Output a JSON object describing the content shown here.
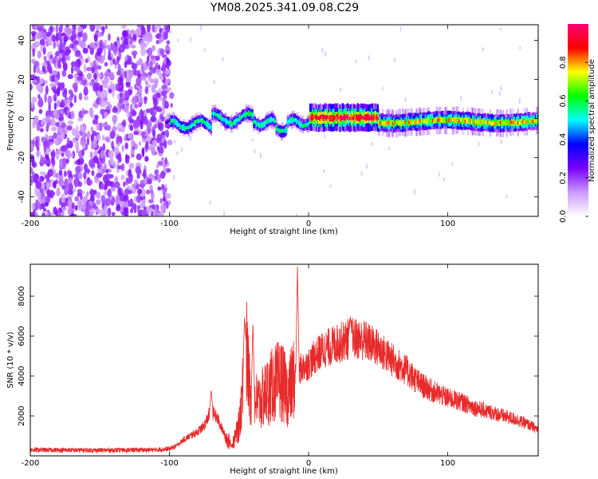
{
  "title": "YM08.2025.341.09.08.C29",
  "chart_data": [
    {
      "type": "heatmap",
      "name": "spectrogram",
      "xlabel": "Height of straight line (km)",
      "ylabel": "Frequency (Hz)",
      "xlim": [
        -200,
        165
      ],
      "ylim": [
        -50,
        48
      ],
      "xticks": [
        -200,
        -100,
        0,
        100
      ],
      "yticks": [
        -40,
        -20,
        0,
        20,
        40
      ],
      "colorbar": {
        "label": "Normalized spectral amplitude",
        "range": [
          0,
          1
        ],
        "ticks": [
          0.0,
          0.2,
          0.4,
          0.6,
          0.8
        ],
        "colors": [
          "#ffffff",
          "#cc99ff",
          "#7a00ff",
          "#0000ff",
          "#00ffff",
          "#00ff00",
          "#ffff00",
          "#ff0000",
          "#ff0077"
        ]
      },
      "regions": [
        {
          "x_range": [
            -200,
            -100
          ],
          "description": "broadband noise",
          "amplitude": 0.15
        },
        {
          "x_range": [
            -100,
            0
          ],
          "center_freq_hz": 0,
          "amplitude": 0.55
        },
        {
          "x_range": [
            0,
            50
          ],
          "center_freq_hz": 0,
          "amplitude": 0.95
        },
        {
          "x_range": [
            50,
            165
          ],
          "center_freq_hz": -2,
          "amplitude": 0.75
        }
      ]
    },
    {
      "type": "line",
      "name": "snr",
      "xlabel": "Height of straight line (km)",
      "ylabel": "SNR (10 * v/v)",
      "xlim": [
        -200,
        165
      ],
      "ylim": [
        0,
        9600
      ],
      "xticks": [
        -200,
        -100,
        0,
        100
      ],
      "yticks": [
        2000,
        4000,
        6000,
        8000
      ],
      "color": "#e82a2a",
      "anchors": [
        [
          -200,
          300
        ],
        [
          -150,
          280
        ],
        [
          -110,
          300
        ],
        [
          -100,
          350
        ],
        [
          -95,
          500
        ],
        [
          -90,
          800
        ],
        [
          -85,
          1000
        ],
        [
          -80,
          1200
        ],
        [
          -75,
          1500
        ],
        [
          -70,
          2300
        ],
        [
          -65,
          1800
        ],
        [
          -60,
          1000
        ],
        [
          -55,
          500
        ],
        [
          -50,
          1500
        ],
        [
          -47,
          3800
        ],
        [
          -45,
          5600
        ],
        [
          -42,
          3000
        ],
        [
          -40,
          2800
        ],
        [
          -35,
          2700
        ],
        [
          -30,
          3200
        ],
        [
          -25,
          3600
        ],
        [
          -20,
          3800
        ],
        [
          -15,
          3100
        ],
        [
          -10,
          4000
        ],
        [
          -5,
          4400
        ],
        [
          0,
          4600
        ],
        [
          5,
          5000
        ],
        [
          10,
          5300
        ],
        [
          20,
          5600
        ],
        [
          30,
          5900
        ],
        [
          40,
          5800
        ],
        [
          50,
          5400
        ],
        [
          60,
          4800
        ],
        [
          70,
          4300
        ],
        [
          80,
          3600
        ],
        [
          90,
          3200
        ],
        [
          100,
          2900
        ],
        [
          110,
          2700
        ],
        [
          120,
          2400
        ],
        [
          130,
          2200
        ],
        [
          140,
          2000
        ],
        [
          150,
          1800
        ],
        [
          160,
          1500
        ],
        [
          165,
          1300
        ]
      ],
      "peaks": [
        [
          -8,
          9500
        ],
        [
          -46,
          7000
        ],
        [
          -40,
          6700
        ],
        [
          30,
          7000
        ],
        [
          -70,
          3300
        ]
      ]
    }
  ]
}
